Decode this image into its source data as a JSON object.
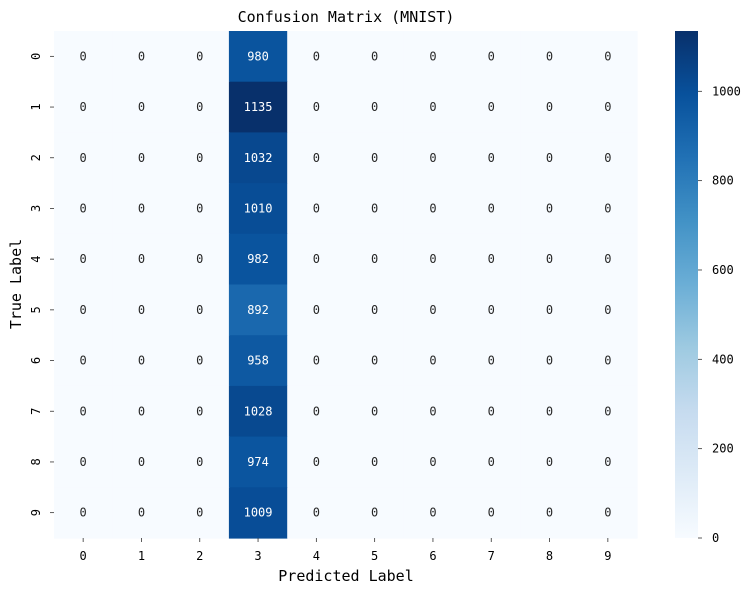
{
  "chart_data": {
    "type": "heatmap",
    "title": "Confusion Matrix (MNIST)",
    "xlabel": "Predicted Label",
    "ylabel": "True Label",
    "x_categories": [
      "0",
      "1",
      "2",
      "3",
      "4",
      "5",
      "6",
      "7",
      "8",
      "9"
    ],
    "y_categories": [
      "0",
      "1",
      "2",
      "3",
      "4",
      "5",
      "6",
      "7",
      "8",
      "9"
    ],
    "values": [
      [
        0,
        0,
        0,
        980,
        0,
        0,
        0,
        0,
        0,
        0
      ],
      [
        0,
        0,
        0,
        1135,
        0,
        0,
        0,
        0,
        0,
        0
      ],
      [
        0,
        0,
        0,
        1032,
        0,
        0,
        0,
        0,
        0,
        0
      ],
      [
        0,
        0,
        0,
        1010,
        0,
        0,
        0,
        0,
        0,
        0
      ],
      [
        0,
        0,
        0,
        982,
        0,
        0,
        0,
        0,
        0,
        0
      ],
      [
        0,
        0,
        0,
        892,
        0,
        0,
        0,
        0,
        0,
        0
      ],
      [
        0,
        0,
        0,
        958,
        0,
        0,
        0,
        0,
        0,
        0
      ],
      [
        0,
        0,
        0,
        1028,
        0,
        0,
        0,
        0,
        0,
        0
      ],
      [
        0,
        0,
        0,
        974,
        0,
        0,
        0,
        0,
        0,
        0
      ],
      [
        0,
        0,
        0,
        1009,
        0,
        0,
        0,
        0,
        0,
        0
      ]
    ],
    "colormap": "Blues",
    "color_range": [
      0,
      1135
    ],
    "colorbar_ticks": [
      "0",
      "200",
      "400",
      "600",
      "800",
      "1000"
    ],
    "colorbar_tick_values": [
      0,
      200,
      400,
      600,
      800,
      1000
    ],
    "annotate": true,
    "grid": false
  }
}
